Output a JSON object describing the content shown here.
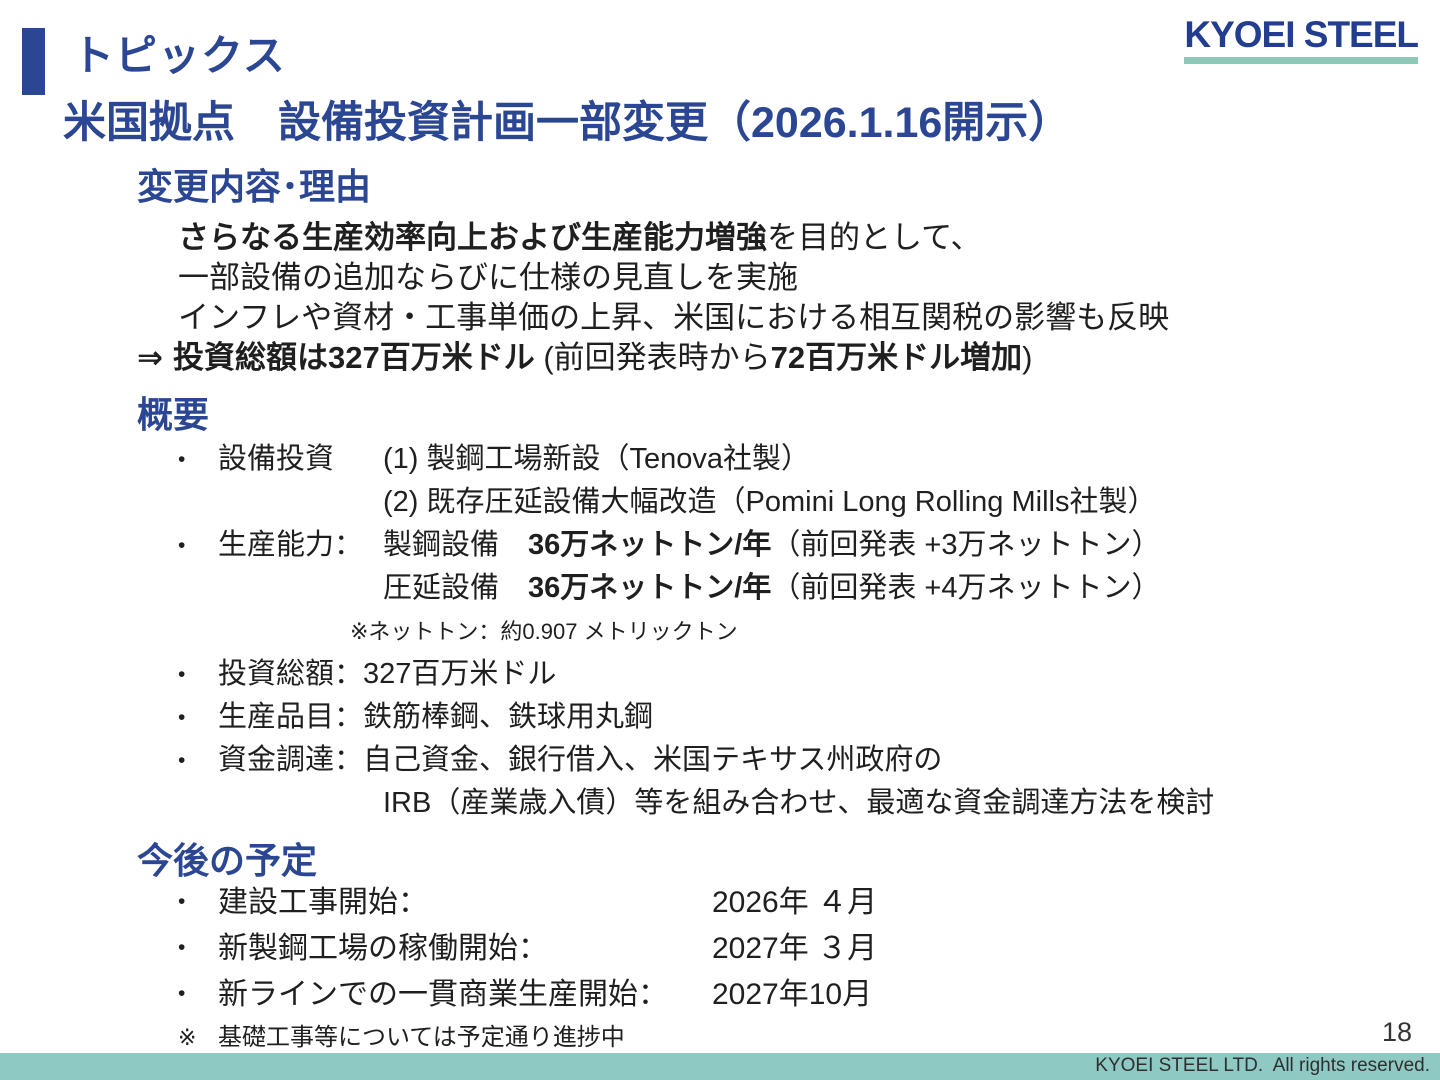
{
  "colors": {
    "heading_blue": "#2b4693",
    "logo_blue": "#233e8f",
    "accent_teal": "#8ecac3",
    "logo_underline_teal": "#8fc8bb"
  },
  "bullets": {
    "marker": "•"
  },
  "header": {
    "topics": "トピックス",
    "logo": "KYOEI STEEL",
    "title": "米国拠点　設備投資計画一部変更（2026.1.16開示）"
  },
  "change": {
    "heading": "変更内容･理由",
    "purpose_bold": "さらなる生産効率向上および生産能力増強",
    "purpose_rest": "を目的として、",
    "line2": "一部設備の追加ならびに仕様の見直しを実施",
    "line3": "インフレや資材・工事単価の上昇、米国における相互関税の影響も反映",
    "arrow": "⇒",
    "total_bold": "投資総額は327百万米ドル",
    "total_mid": " (前回発表時から",
    "total_bold2": "72百万米ドル増加",
    "total_close": ")"
  },
  "overview": {
    "heading": "概要",
    "equip": {
      "label": "設備投資",
      "line1": "(1) 製鋼工場新設（Tenova社製）",
      "line2": "(2) 既存圧延設備大幅改造（Pomini Long Rolling Mills社製）"
    },
    "capacity": {
      "label": "生産能力：",
      "row1_name": "製鋼設備　",
      "row1_value": "36万ネットトン/年",
      "row1_note": "（前回発表 +3万ネットトン）",
      "row2_name": "圧延設備　",
      "row2_value": "36万ネットトン/年",
      "row2_note": "（前回発表 +4万ネットトン）",
      "footnote": "※ネットトン：約0.907 メトリックトン"
    },
    "total": {
      "text": "投資総額：327百万米ドル"
    },
    "products": {
      "text": "生産品目：鉄筋棒鋼、鉄球用丸鋼"
    },
    "funding": {
      "line1": "資金調達：自己資金、銀行借入、米国テキサス州政府の",
      "line2": "IRB（産業歳入債）等を組み合わせ、最適な資金調達方法を検討"
    }
  },
  "schedule": {
    "heading": "今後の予定",
    "items": [
      {
        "label": "建設工事開始：",
        "date": "2026年 ４月"
      },
      {
        "label": "新製鋼工場の稼働開始：",
        "date": "2027年 ３月"
      },
      {
        "label": "新ラインでの一貫商業生産開始：",
        "date": "2027年10月"
      }
    ],
    "note_mark": "※",
    "note": "基礎工事等については予定通り進捗中"
  },
  "footer": {
    "page_number": "18",
    "copyright": "KYOEI STEEL LTD.  All rights reserved."
  }
}
